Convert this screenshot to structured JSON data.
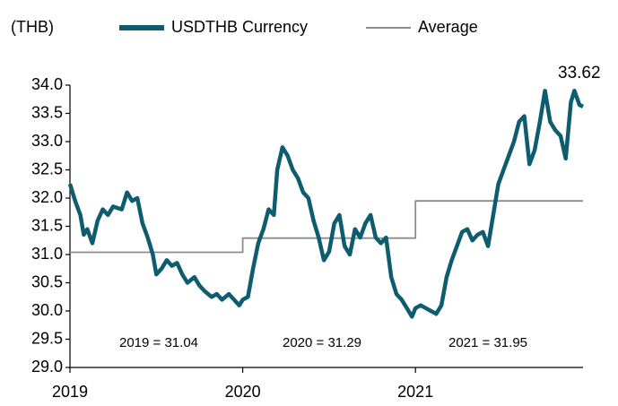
{
  "chart_data": {
    "type": "line",
    "y_label": "(THB)",
    "xlim": [
      2019,
      2021.97
    ],
    "xticks": [
      2019,
      2020,
      2021
    ],
    "ylim": [
      29,
      34
    ],
    "yticks": [
      {
        "value": 29,
        "label": "29.0"
      },
      {
        "value": 29.5,
        "label": "29.5"
      },
      {
        "value": 30,
        "label": "30.0"
      },
      {
        "value": 30.5,
        "label": "30.5"
      },
      {
        "value": 31,
        "label": "31.0"
      },
      {
        "value": 31.5,
        "label": "31.5"
      },
      {
        "value": 32,
        "label": "32.0"
      },
      {
        "value": 32.5,
        "label": "32.5"
      },
      {
        "value": 33,
        "label": "33.0"
      },
      {
        "value": 33.5,
        "label": "33.5"
      },
      {
        "value": 34,
        "label": "34.0"
      }
    ],
    "series": [
      {
        "name": "USDTHB Currency",
        "color": "#0e5c70",
        "x": [
          2019.0,
          2019.03,
          2019.06,
          2019.08,
          2019.1,
          2019.13,
          2019.16,
          2019.19,
          2019.22,
          2019.25,
          2019.3,
          2019.33,
          2019.36,
          2019.39,
          2019.42,
          2019.45,
          2019.48,
          2019.5,
          2019.53,
          2019.56,
          2019.59,
          2019.62,
          2019.65,
          2019.68,
          2019.72,
          2019.75,
          2019.78,
          2019.82,
          2019.85,
          2019.88,
          2019.92,
          2019.95,
          2019.98,
          2020.0,
          2020.03,
          2020.06,
          2020.09,
          2020.12,
          2020.15,
          2020.18,
          2020.2,
          2020.23,
          2020.26,
          2020.29,
          2020.32,
          2020.35,
          2020.38,
          2020.41,
          2020.44,
          2020.47,
          2020.5,
          2020.53,
          2020.56,
          2020.59,
          2020.62,
          2020.65,
          2020.68,
          2020.71,
          2020.74,
          2020.77,
          2020.8,
          2020.83,
          2020.86,
          2020.89,
          2020.92,
          2020.95,
          2020.98,
          2021.0,
          2021.03,
          2021.06,
          2021.09,
          2021.12,
          2021.15,
          2021.18,
          2021.21,
          2021.24,
          2021.27,
          2021.3,
          2021.33,
          2021.36,
          2021.39,
          2021.42,
          2021.45,
          2021.48,
          2021.51,
          2021.54,
          2021.57,
          2021.6,
          2021.63,
          2021.66,
          2021.69,
          2021.72,
          2021.75,
          2021.78,
          2021.81,
          2021.84,
          2021.87,
          2021.9,
          2021.92,
          2021.95,
          2021.97
        ],
        "values": [
          32.25,
          31.95,
          31.7,
          31.35,
          31.45,
          31.2,
          31.6,
          31.8,
          31.7,
          31.85,
          31.8,
          32.1,
          31.95,
          32.0,
          31.55,
          31.3,
          31.0,
          30.65,
          30.75,
          30.9,
          30.8,
          30.85,
          30.65,
          30.5,
          30.6,
          30.45,
          30.35,
          30.25,
          30.3,
          30.2,
          30.3,
          30.2,
          30.1,
          30.2,
          30.25,
          30.75,
          31.2,
          31.45,
          31.8,
          31.7,
          32.5,
          32.9,
          32.75,
          32.5,
          32.35,
          32.1,
          32.0,
          31.6,
          31.3,
          30.9,
          31.05,
          31.55,
          31.7,
          31.15,
          31.0,
          31.45,
          31.3,
          31.55,
          31.7,
          31.3,
          31.2,
          31.3,
          30.6,
          30.3,
          30.2,
          30.05,
          29.9,
          30.05,
          30.1,
          30.05,
          30.0,
          29.95,
          30.1,
          30.6,
          30.9,
          31.15,
          31.4,
          31.45,
          31.25,
          31.35,
          31.4,
          31.15,
          31.7,
          32.25,
          32.5,
          32.75,
          33.0,
          33.35,
          33.45,
          32.6,
          32.85,
          33.35,
          33.9,
          33.35,
          33.2,
          33.1,
          32.7,
          33.7,
          33.9,
          33.65,
          33.62
        ]
      },
      {
        "name": "Average",
        "color": "#8c8c8c",
        "x": [
          2019,
          2020,
          2020,
          2021,
          2021,
          2021.97
        ],
        "values": [
          31.04,
          31.04,
          31.29,
          31.29,
          31.95,
          31.95
        ]
      }
    ],
    "annotations": [
      "2019 = 31.04",
      "2020 = 31.29",
      "2021 = 31.95",
      "33.62"
    ]
  }
}
